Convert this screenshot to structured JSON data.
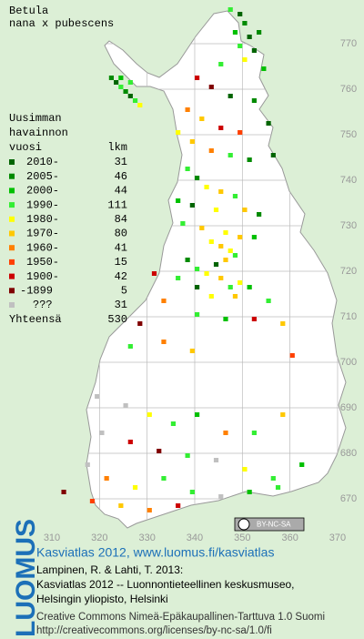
{
  "title": "Betula",
  "subtitle": "nana x pubescens",
  "legend": {
    "header": [
      "Uusimman",
      "havainnon",
      "vuosi"
    ],
    "count_header": "lkm",
    "rows": [
      {
        "label": "2010-",
        "count": 31,
        "color": "#006400"
      },
      {
        "label": "2005-",
        "count": 46,
        "color": "#008a00"
      },
      {
        "label": "2000-",
        "count": 44,
        "color": "#00c000"
      },
      {
        "label": "1990-",
        "count": 111,
        "color": "#33ee33"
      },
      {
        "label": "1980-",
        "count": 84,
        "color": "#ffff00"
      },
      {
        "label": "1970-",
        "count": 80,
        "color": "#ffc800"
      },
      {
        "label": "1960-",
        "count": 41,
        "color": "#ff8000"
      },
      {
        "label": "1950-",
        "count": 15,
        "color": "#ff4000"
      },
      {
        "label": "1900-",
        "count": 42,
        "color": "#cc0000"
      },
      {
        "label": "-1899",
        "count": 5,
        "color": "#800000"
      },
      {
        "label": "???",
        "count": 31,
        "color": "#c0c0c0"
      }
    ],
    "total_label": "Yhteensä",
    "total": 530
  },
  "xticks": [
    310,
    320,
    330,
    340,
    350,
    360,
    370
  ],
  "yticks": [
    670,
    680,
    690,
    700,
    710,
    720,
    730,
    740,
    750,
    760,
    770
  ],
  "squares": [
    [
      322,
      762,
      1
    ],
    [
      323,
      761,
      0
    ],
    [
      324,
      760,
      3
    ],
    [
      325,
      759,
      1
    ],
    [
      326,
      758,
      0
    ],
    [
      327,
      757,
      3
    ],
    [
      328,
      756,
      4
    ],
    [
      324,
      762,
      2
    ],
    [
      326,
      761,
      3
    ],
    [
      347,
      777,
      3
    ],
    [
      349,
      776,
      0
    ],
    [
      350,
      774,
      1
    ],
    [
      348,
      772,
      2
    ],
    [
      351,
      771,
      0
    ],
    [
      353,
      772,
      1
    ],
    [
      349,
      769,
      3
    ],
    [
      352,
      768,
      0
    ],
    [
      350,
      766,
      4
    ],
    [
      345,
      765,
      3
    ],
    [
      354,
      764,
      2
    ],
    [
      340,
      762,
      8
    ],
    [
      343,
      760,
      9
    ],
    [
      347,
      758,
      0
    ],
    [
      352,
      757,
      1
    ],
    [
      338,
      755,
      6
    ],
    [
      341,
      753,
      5
    ],
    [
      345,
      751,
      8
    ],
    [
      349,
      750,
      7
    ],
    [
      355,
      752,
      0
    ],
    [
      336,
      750,
      4
    ],
    [
      339,
      748,
      5
    ],
    [
      343,
      746,
      6
    ],
    [
      347,
      745,
      3
    ],
    [
      351,
      744,
      1
    ],
    [
      356,
      745,
      0
    ],
    [
      338,
      742,
      3
    ],
    [
      340,
      740,
      1
    ],
    [
      342,
      738,
      4
    ],
    [
      345,
      737,
      5
    ],
    [
      348,
      736,
      3
    ],
    [
      336,
      735,
      2
    ],
    [
      339,
      734,
      0
    ],
    [
      344,
      733,
      4
    ],
    [
      350,
      733,
      5
    ],
    [
      353,
      732,
      1
    ],
    [
      337,
      730,
      3
    ],
    [
      341,
      729,
      5
    ],
    [
      346,
      728,
      4
    ],
    [
      349,
      727,
      5
    ],
    [
      352,
      727,
      2
    ],
    [
      343,
      726,
      4
    ],
    [
      345,
      725,
      5
    ],
    [
      347,
      724,
      4
    ],
    [
      348,
      723,
      3
    ],
    [
      346,
      722,
      5
    ],
    [
      344,
      721,
      0
    ],
    [
      338,
      722,
      1
    ],
    [
      340,
      720,
      3
    ],
    [
      342,
      719,
      4
    ],
    [
      345,
      718,
      5
    ],
    [
      349,
      717,
      4
    ],
    [
      351,
      716,
      2
    ],
    [
      347,
      716,
      3
    ],
    [
      340,
      716,
      0
    ],
    [
      336,
      718,
      3
    ],
    [
      343,
      714,
      4
    ],
    [
      348,
      714,
      5
    ],
    [
      355,
      713,
      3
    ],
    [
      331,
      719,
      8
    ],
    [
      333,
      713,
      6
    ],
    [
      328,
      708,
      9
    ],
    [
      340,
      710,
      3
    ],
    [
      346,
      709,
      2
    ],
    [
      352,
      709,
      8
    ],
    [
      358,
      708,
      5
    ],
    [
      326,
      703,
      3
    ],
    [
      333,
      704,
      6
    ],
    [
      339,
      702,
      5
    ],
    [
      360,
      701,
      7
    ],
    [
      319,
      692,
      10
    ],
    [
      325,
      690,
      10
    ],
    [
      330,
      688,
      4
    ],
    [
      335,
      686,
      3
    ],
    [
      340,
      688,
      2
    ],
    [
      346,
      684,
      6
    ],
    [
      352,
      684,
      3
    ],
    [
      358,
      688,
      5
    ],
    [
      320,
      684,
      10
    ],
    [
      326,
      682,
      8
    ],
    [
      332,
      680,
      9
    ],
    [
      338,
      679,
      3
    ],
    [
      344,
      678,
      10
    ],
    [
      350,
      676,
      4
    ],
    [
      356,
      674,
      3
    ],
    [
      362,
      677,
      2
    ],
    [
      317,
      677,
      10
    ],
    [
      321,
      674,
      6
    ],
    [
      327,
      672,
      4
    ],
    [
      333,
      674,
      3
    ],
    [
      339,
      671,
      3
    ],
    [
      345,
      670,
      10
    ],
    [
      351,
      671,
      2
    ],
    [
      357,
      672,
      3
    ],
    [
      312,
      671,
      9
    ],
    [
      318,
      669,
      7
    ],
    [
      324,
      668,
      5
    ],
    [
      330,
      667,
      6
    ],
    [
      336,
      668,
      8
    ]
  ],
  "badge": "BY-NC-SA",
  "footer": {
    "logo": "LUOMUS",
    "link": "Kasviatlas 2012, www.luomus.fi/kasviatlas",
    "citation": [
      "Lampinen, R. & Lahti, T. 2013:",
      "Kasviatlas 2012 -- Luonnontieteellinen keskusmuseo,",
      "Helsingin yliopisto, Helsinki"
    ],
    "license": [
      "Creative Commons Nimeä-Epäkaupallinen-Tarttuva 1.0 Suomi",
      "http://creativecommons.org/licenses/by-nc-sa/1.0/fi"
    ]
  }
}
